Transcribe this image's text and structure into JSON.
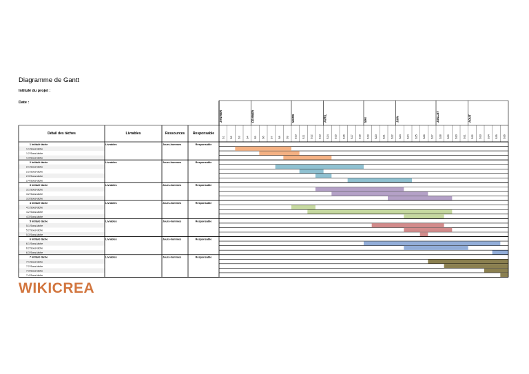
{
  "document": {
    "title": "Diagramme de Gantt",
    "project_label": "Intitulé du projet :",
    "date_label": "Date :"
  },
  "table": {
    "headers": [
      "Détail des tâches",
      "Livrables",
      "Ressources",
      "Responsable"
    ],
    "months": [
      "JANVIER",
      "FEVRIER",
      "MARS",
      "AVRIL",
      "MAI",
      "JUIN",
      "JUILLET",
      "AOUT"
    ],
    "weeks": [
      "S1",
      "S2",
      "S3",
      "S4",
      "S5",
      "S6",
      "S7",
      "S8",
      "S9",
      "S10",
      "S11",
      "S12",
      "S13",
      "S14",
      "S15",
      "S16",
      "S17",
      "S18",
      "S19",
      "S20",
      "S21",
      "S22",
      "S23",
      "S24",
      "S25",
      "S26",
      "S27",
      "S28",
      "S29",
      "S30",
      "S31",
      "S32",
      "S33",
      "S34",
      "S35",
      "S36"
    ]
  },
  "groups": [
    {
      "number": "1",
      "task": "Intitulé tâche",
      "livrable": "Livrables",
      "ressource": "Jours-hommes",
      "responsable": "Responsable",
      "color": "#f4b183",
      "subtasks": [
        {
          "number": "1.1",
          "label": "Sous-tâche",
          "start_week": 3,
          "end_week": 9
        },
        {
          "number": "1.2",
          "label": "Sous-tâche",
          "start_week": 6,
          "end_week": 10
        },
        {
          "number": "1.3",
          "label": "Sous-tâche",
          "start_week": 9,
          "end_week": 14
        }
      ]
    },
    {
      "number": "2",
      "task": "Intitulé tâche",
      "livrable": "Livrables",
      "ressource": "Jours-hommes",
      "responsable": "Responsable",
      "color": "#8fc1d1",
      "subtasks": [
        {
          "number": "2.1",
          "label": "Sous-tâche",
          "start_week": 8,
          "end_week": 18
        },
        {
          "number": "2.2",
          "label": "Sous-tâche",
          "start_week": 11,
          "end_week": 13
        },
        {
          "number": "2.3",
          "label": "Sous-tâche",
          "start_week": 13,
          "end_week": 14
        },
        {
          "number": "2.4",
          "label": "Sous-tâche",
          "start_week": 17,
          "end_week": 24
        }
      ]
    },
    {
      "number": "3",
      "task": "Intitulé tâche",
      "livrable": "Livrables",
      "ressource": "Jours-hommes",
      "responsable": "Responsable",
      "color": "#b4a1c7",
      "subtasks": [
        {
          "number": "3.1",
          "label": "Sous-tâche",
          "start_week": 13,
          "end_week": 23
        },
        {
          "number": "3.2",
          "label": "Sous-tâche",
          "start_week": 15,
          "end_week": 26
        },
        {
          "number": "3.3",
          "label": "Sous-tâche",
          "start_week": 22,
          "end_week": 29
        }
      ]
    },
    {
      "number": "4",
      "task": "Intitulé tâche",
      "livrable": "Livrables",
      "ressource": "Jours-hommes",
      "responsable": "Responsable",
      "color": "#c6d9a0",
      "subtasks": [
        {
          "number": "4.1",
          "label": "Sous-tâche",
          "start_week": 10,
          "end_week": 12
        },
        {
          "number": "4.2",
          "label": "Sous-tâche",
          "start_week": 12,
          "end_week": 29
        },
        {
          "number": "4.3",
          "label": "Sous-tâche",
          "start_week": 24,
          "end_week": 28
        }
      ]
    },
    {
      "number": "5",
      "task": "Intitulé tâche",
      "livrable": "Livrables",
      "ressource": "Jours-hommes",
      "responsable": "Responsable",
      "color": "#d28b8b",
      "subtasks": [
        {
          "number": "5.1",
          "label": "Sous-tâche",
          "start_week": 20,
          "end_week": 28
        },
        {
          "number": "5.2",
          "label": "Sous-tâche",
          "start_week": 24,
          "end_week": 29
        },
        {
          "number": "5.3",
          "label": "Sous-tâche",
          "start_week": 26,
          "end_week": 26
        }
      ]
    },
    {
      "number": "6",
      "task": "Intitulé tâche",
      "livrable": "Livrables",
      "ressource": "Jours-hommes",
      "responsable": "Responsable",
      "color": "#92add8",
      "subtasks": [
        {
          "number": "6.1",
          "label": "Sous-tâche",
          "start_week": 19,
          "end_week": 35
        },
        {
          "number": "6.2",
          "label": "Sous-tâche",
          "start_week": 24,
          "end_week": 31
        },
        {
          "number": "6.3",
          "label": "Sous-tâche",
          "start_week": 35,
          "end_week": 36
        }
      ]
    },
    {
      "number": "7",
      "task": "Intitulé tâche",
      "livrable": "Livrables",
      "ressource": "Jours-hommes",
      "responsable": "Responsable",
      "color": "#8a7f4f",
      "subtasks": [
        {
          "number": "7.1",
          "label": "Sous-tâche",
          "start_week": 27,
          "end_week": 36
        },
        {
          "number": "7.2",
          "label": "Sous-tâche",
          "start_week": 29,
          "end_week": 36
        },
        {
          "number": "7.3",
          "label": "Sous-tâche",
          "start_week": 34,
          "end_week": 36
        },
        {
          "number": "7.4",
          "label": "Sous-tâche",
          "start_week": 36,
          "end_week": 36
        }
      ]
    }
  ],
  "logo": {
    "text": "WIKICREA",
    "color": "#d2763f"
  }
}
